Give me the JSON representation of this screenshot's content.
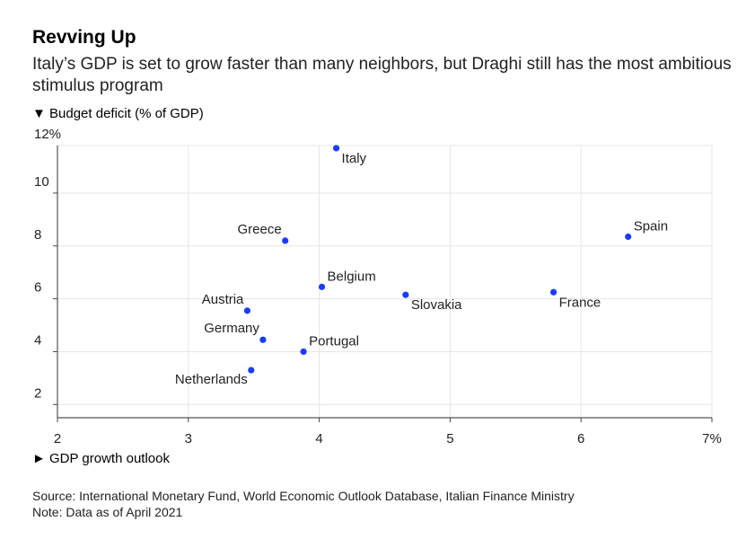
{
  "chart_data": {
    "type": "scatter",
    "title": "Revving Up",
    "subtitle": "Italy’s GDP is set to grow faster than many neighbors, but Draghi still has the most ambitious stimulus program",
    "ylabel": "▼ Budget deficit (% of GDP)",
    "xlabel": "► GDP growth outlook",
    "xlim": [
      2,
      7
    ],
    "ylim": [
      1.5,
      11.8
    ],
    "x_ticks": [
      2,
      3,
      4,
      5,
      6,
      7
    ],
    "x_tick_labels": [
      "2",
      "3",
      "4",
      "5",
      "6",
      "7%"
    ],
    "y_ticks": [
      2,
      4,
      6,
      8,
      10,
      12
    ],
    "y_tick_labels": [
      "2",
      "4",
      "6",
      "8",
      "10",
      "12%"
    ],
    "grid": true,
    "point_color": "#1a3cff",
    "points": [
      {
        "label": "Italy",
        "x": 4.13,
        "y": 11.7,
        "pos": "below-right"
      },
      {
        "label": "Greece",
        "x": 3.74,
        "y": 8.2,
        "pos": "upper-left"
      },
      {
        "label": "Spain",
        "x": 6.36,
        "y": 8.35,
        "pos": "upper-right"
      },
      {
        "label": "Belgium",
        "x": 4.02,
        "y": 6.45,
        "pos": "upper-right"
      },
      {
        "label": "Slovakia",
        "x": 4.66,
        "y": 6.15,
        "pos": "below-right"
      },
      {
        "label": "France",
        "x": 5.79,
        "y": 6.25,
        "pos": "below-right"
      },
      {
        "label": "Austria",
        "x": 3.45,
        "y": 5.55,
        "pos": "upper-left"
      },
      {
        "label": "Germany",
        "x": 3.57,
        "y": 4.45,
        "pos": "upper-left"
      },
      {
        "label": "Portugal",
        "x": 3.88,
        "y": 4.0,
        "pos": "upper-right"
      },
      {
        "label": "Netherlands",
        "x": 3.48,
        "y": 3.3,
        "pos": "below-left"
      }
    ]
  },
  "footer": {
    "source": "Source: International Monetary Fund, World Economic Outlook Database, Italian Finance Ministry",
    "note": "Note: Data as of April 2021"
  }
}
